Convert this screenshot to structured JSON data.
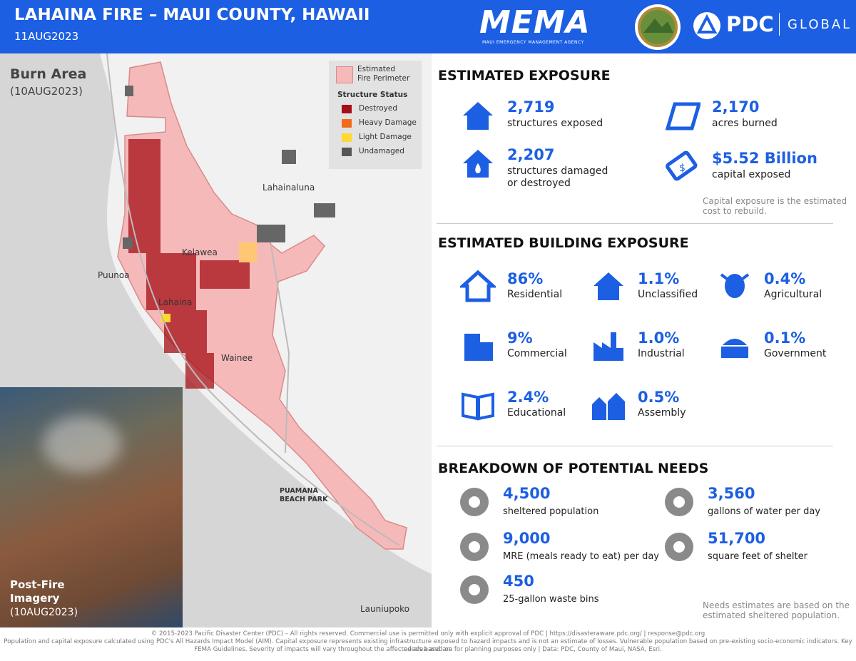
{
  "header": {
    "title": "LAHAINA FIRE – MAUI COUNTY, HAWAII",
    "date": "11AUG2023",
    "mema": "MEMA",
    "mema_sub": "MAUI EMERGENCY MANAGEMENT AGENCY",
    "pdc": "PDC",
    "global": "GLOBAL"
  },
  "map": {
    "title": "Burn Area",
    "date": "(10AUG2023)",
    "legend": {
      "perimeter": [
        "Estimated",
        "Fire Perimeter"
      ],
      "status_title": "Structure Status",
      "items": [
        {
          "label": "Destroyed",
          "color": "#a50f15"
        },
        {
          "label": "Heavy Damage",
          "color": "#f26b1d"
        },
        {
          "label": "Light Damage",
          "color": "#ffd92f"
        },
        {
          "label": "Undamaged",
          "color": "#555555"
        }
      ]
    },
    "places": [
      "Lahainaluna",
      "Kelawea",
      "Puunoa",
      "Lahaina",
      "Wainee",
      "PUAMANA",
      "BEACH PARK",
      "Launiupoko"
    ],
    "inset": {
      "title": [
        "Post-Fire",
        "Imagery"
      ],
      "date": "(10AUG2023)"
    }
  },
  "exposure": {
    "title": "ESTIMATED EXPOSURE",
    "items": [
      {
        "value": "2,719",
        "label": [
          "structures exposed"
        ]
      },
      {
        "value": "2,170",
        "label": [
          "acres burned"
        ]
      },
      {
        "value": "2,207",
        "label": [
          "structures damaged",
          "or destroyed"
        ]
      },
      {
        "value": "$5.52 Billion",
        "label": [
          "capital exposed"
        ]
      }
    ],
    "note": [
      "Capital exposure is the estimated",
      "cost to rebuild."
    ]
  },
  "building": {
    "title": "ESTIMATED BUILDING EXPOSURE",
    "items": [
      {
        "value": "86%",
        "label": "Residential"
      },
      {
        "value": "1.1%",
        "label": "Unclassified"
      },
      {
        "value": "0.4%",
        "label": "Agricultural"
      },
      {
        "value": "9%",
        "label": "Commercial"
      },
      {
        "value": "1.0%",
        "label": "Industrial"
      },
      {
        "value": "0.1%",
        "label": "Government"
      },
      {
        "value": "2.4%",
        "label": "Educational"
      },
      {
        "value": "0.5%",
        "label": "Assembly"
      }
    ]
  },
  "needs": {
    "title": "BREAKDOWN OF POTENTIAL NEEDS",
    "items": [
      {
        "value": "4,500",
        "label": "sheltered population"
      },
      {
        "value": "3,560",
        "label": "gallons of water per day"
      },
      {
        "value": "9,000",
        "label": "MRE (meals ready to eat) per day"
      },
      {
        "value": "51,700",
        "label": "square feet of shelter"
      },
      {
        "value": "450",
        "label": "25-gallon waste bins"
      }
    ],
    "note": [
      "Needs estimates are based on the",
      "estimated sheltered population."
    ]
  },
  "footer": [
    "© 2015-2023 Pacific Disaster Center (PDC) – All rights reserved. Commercial use is permitted only with explicit approval of PDC | https://disasteraware.pdc.org/ | response@pdc.org",
    "Population and capital exposure calculated using PDC's All Hazards Impact Model (AIM). Capital exposure represents existing infrastructure exposed to hazard impacts and is not an estimate of losses. Vulnerable population based on pre-existing socio-economic indicators. Key needs based on",
    "FEMA Guidelines. Severity of impacts will vary throughout the affected area and are for planning purposes only | Data: PDC, County of Maui, NASA, Esri."
  ]
}
